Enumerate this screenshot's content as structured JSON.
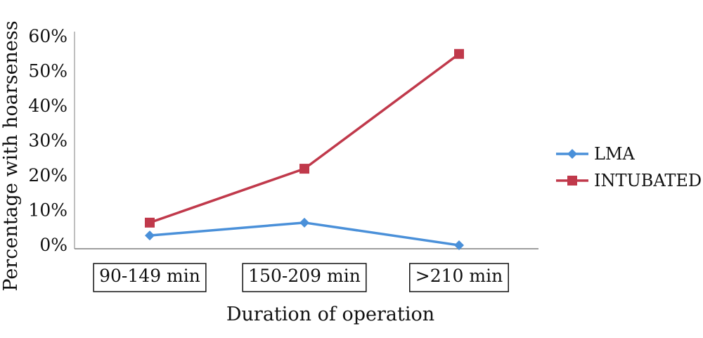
{
  "chart_data": {
    "type": "line",
    "categories": [
      "90-149 min",
      "150-209 min",
      ">210 min"
    ],
    "series": [
      {
        "name": "LMA",
        "values": [
          2.8,
          6.5,
          0
        ],
        "color": "#4a90d9",
        "marker": "diamond"
      },
      {
        "name": "INTUBATED",
        "values": [
          6.5,
          22,
          55
        ],
        "color": "#c0394b",
        "marker": "square"
      }
    ],
    "y_ticks": [
      "0%",
      "10%",
      "20%",
      "30%",
      "40%",
      "50%",
      "60%"
    ],
    "ylim": [
      0,
      60
    ],
    "xlabel": "Duration of operation",
    "ylabel": "Percentage with hoarseness",
    "legend_position": "right",
    "grid": false
  }
}
